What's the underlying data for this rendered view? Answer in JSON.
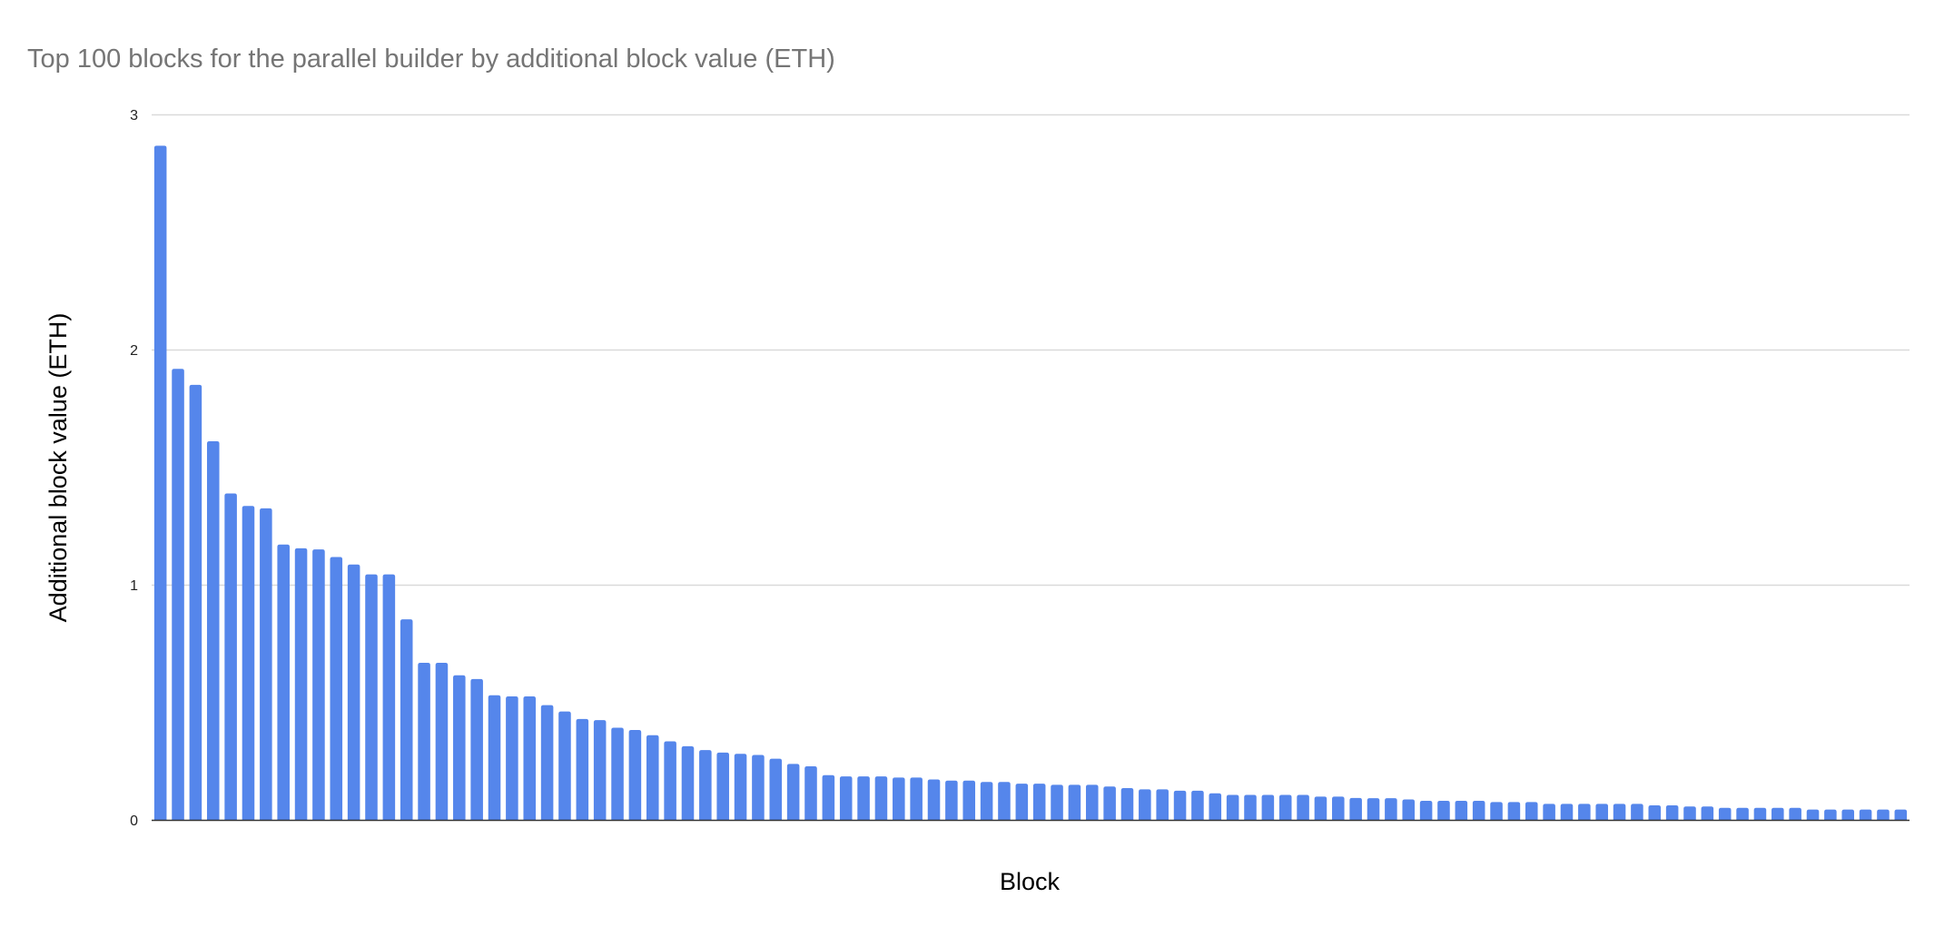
{
  "chart_data": {
    "type": "bar",
    "title": "Top 100 blocks for the parallel builder by additional block value (ETH)",
    "xlabel": "Block",
    "ylabel": "Additional block value (ETH)",
    "ylim": [
      0,
      3
    ],
    "yticks": [
      "0",
      "1",
      "2",
      "3"
    ],
    "grid": true,
    "legend": "none",
    "bar_color": "#5586eb",
    "values": [
      2.867,
      1.918,
      1.85,
      1.61,
      1.388,
      1.335,
      1.325,
      1.171,
      1.155,
      1.15,
      1.118,
      1.086,
      1.044,
      1.044,
      0.853,
      0.668,
      0.668,
      0.615,
      0.599,
      0.53,
      0.525,
      0.525,
      0.488,
      0.461,
      0.429,
      0.424,
      0.392,
      0.382,
      0.36,
      0.334,
      0.313,
      0.297,
      0.286,
      0.281,
      0.276,
      0.26,
      0.238,
      0.228,
      0.19,
      0.185,
      0.185,
      0.185,
      0.18,
      0.18,
      0.172,
      0.167,
      0.167,
      0.161,
      0.161,
      0.154,
      0.154,
      0.149,
      0.149,
      0.149,
      0.142,
      0.135,
      0.13,
      0.13,
      0.124,
      0.124,
      0.113,
      0.106,
      0.106,
      0.106,
      0.106,
      0.106,
      0.099,
      0.099,
      0.093,
      0.092,
      0.092,
      0.087,
      0.081,
      0.081,
      0.081,
      0.081,
      0.076,
      0.076,
      0.076,
      0.068,
      0.068,
      0.068,
      0.068,
      0.068,
      0.068,
      0.062,
      0.062,
      0.057,
      0.057,
      0.051,
      0.051,
      0.051,
      0.051,
      0.051,
      0.044,
      0.044,
      0.044,
      0.044,
      0.044,
      0.044
    ]
  }
}
